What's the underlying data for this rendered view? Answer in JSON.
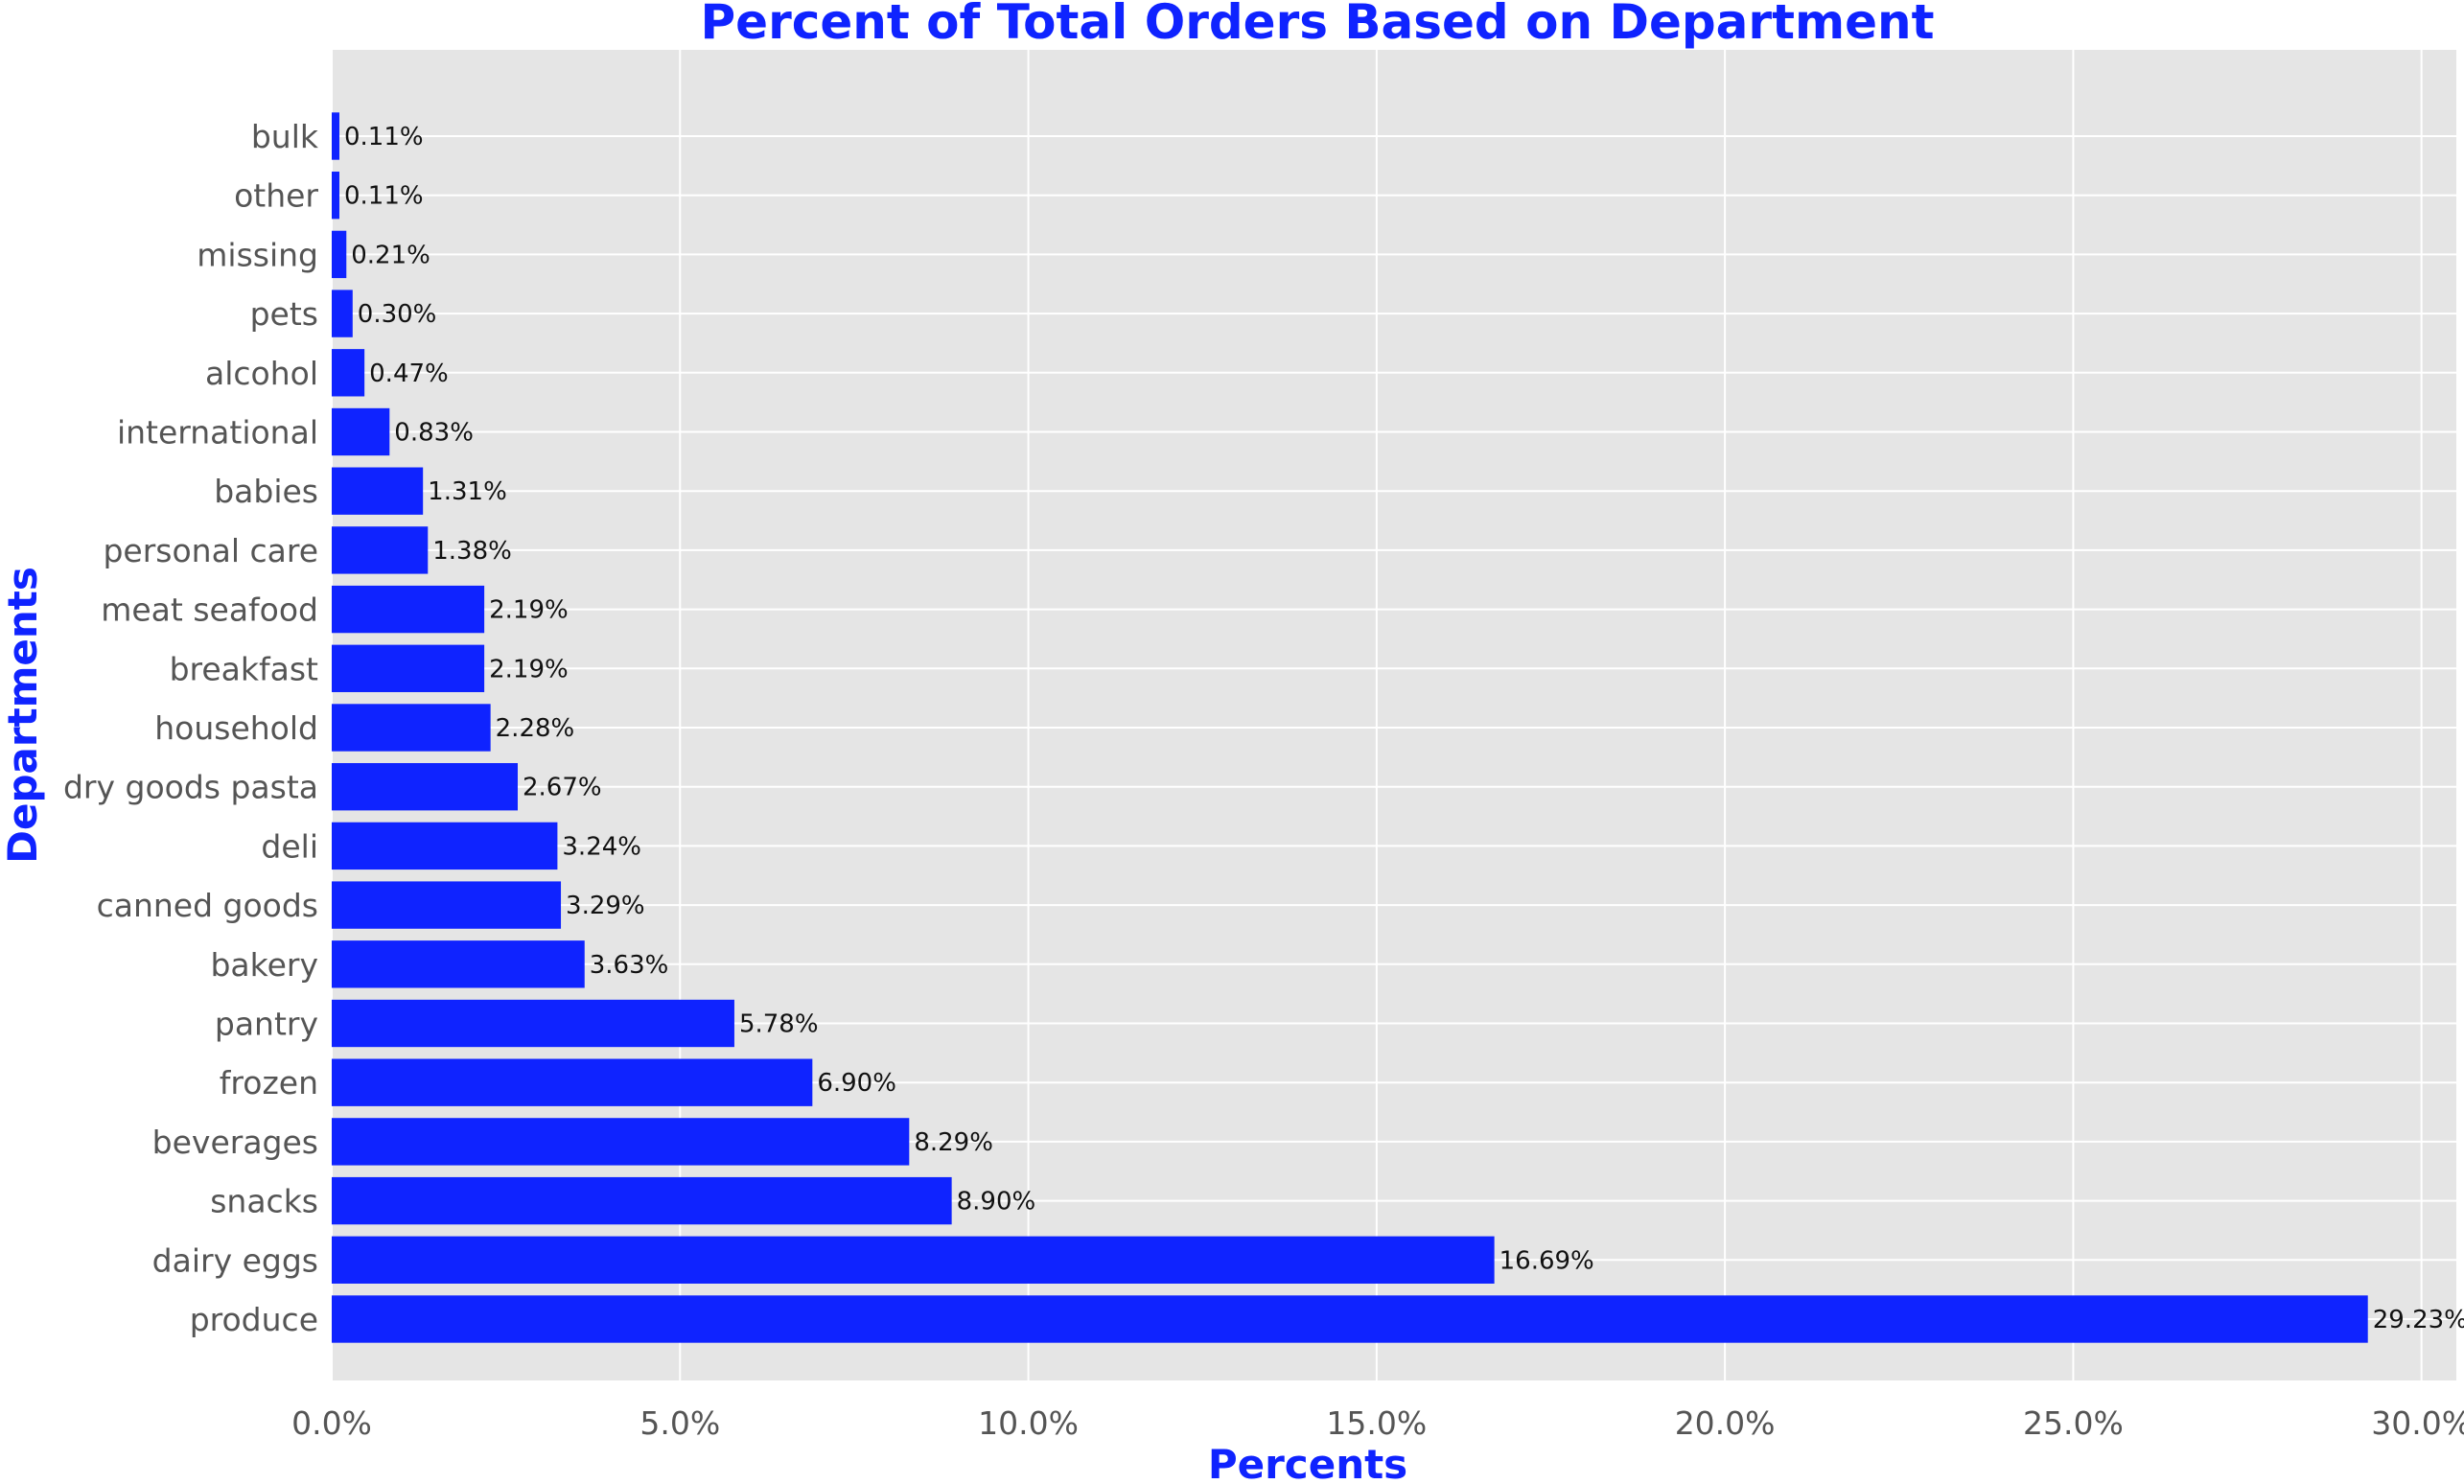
{
  "chart_data": {
    "type": "bar",
    "orientation": "horizontal",
    "title": "Percent of Total Orders Based on Department",
    "xlabel": "Percents",
    "ylabel": "Departments",
    "xlim": [
      0,
      30.5
    ],
    "x_ticks": [
      0,
      5,
      10,
      15,
      20,
      25,
      30
    ],
    "x_tick_labels": [
      "0.0%",
      "5.0%",
      "10.0%",
      "15.0%",
      "20.0%",
      "25.0%",
      "30.0%"
    ],
    "grid": true,
    "bar_color": "#0f23ff",
    "plot_background": "#e5e5e5",
    "categories": [
      "produce",
      "dairy eggs",
      "snacks",
      "beverages",
      "frozen",
      "pantry",
      "bakery",
      "canned goods",
      "deli",
      "dry goods pasta",
      "household",
      "breakfast",
      "meat seafood",
      "personal care",
      "babies",
      "international",
      "alcohol",
      "pets",
      "missing",
      "other",
      "bulk"
    ],
    "values": [
      29.23,
      16.69,
      8.9,
      8.29,
      6.9,
      5.78,
      3.63,
      3.29,
      3.24,
      2.67,
      2.28,
      2.19,
      2.19,
      1.38,
      1.31,
      0.83,
      0.47,
      0.3,
      0.21,
      0.11,
      0.11
    ],
    "value_labels": [
      "29.23%",
      "16.69%",
      "8.90%",
      "8.29%",
      "6.90%",
      "5.78%",
      "3.63%",
      "3.29%",
      "3.24%",
      "2.67%",
      "2.28%",
      "2.19%",
      "2.19%",
      "1.38%",
      "1.31%",
      "0.83%",
      "0.47%",
      "0.30%",
      "0.21%",
      "0.11%",
      "0.11%"
    ]
  }
}
